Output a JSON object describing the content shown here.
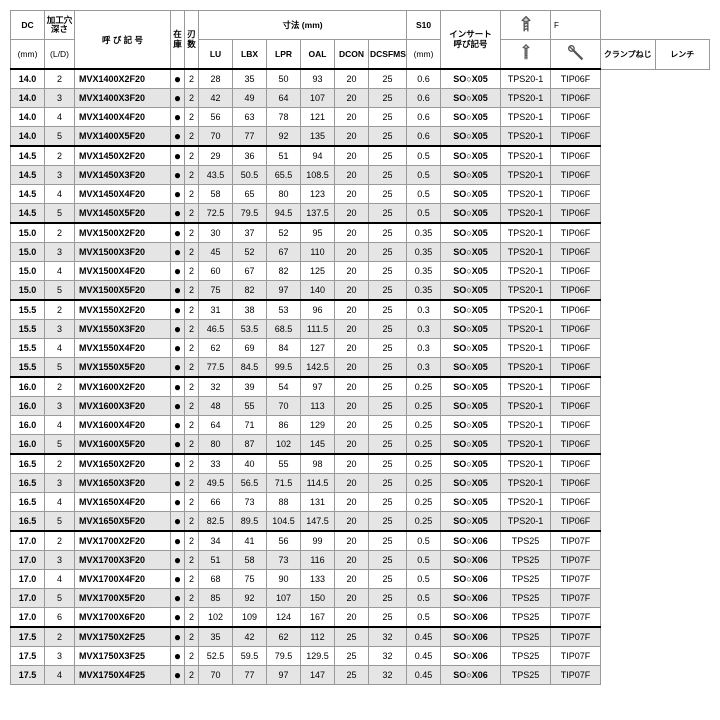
{
  "headers": {
    "dc": "DC",
    "dc_unit": "(mm)",
    "depth": "加工穴\n深さ",
    "depth_unit": "(L/D)",
    "designation": "呼  び  記  号",
    "stock": "在\n庫",
    "flutes": "刃\n数",
    "dimensions": "寸法 (mm)",
    "lu": "LU",
    "lbx": "LBX",
    "lpr": "LPR",
    "oal": "OAL",
    "dcon": "DCON",
    "dcsfms": "DCSFMS",
    "s10": "S10",
    "s10_unit": "(mm)",
    "insert": "インサート\n呼び記号",
    "f": "F",
    "clamp": "クランプねじ",
    "wrench": "レンチ"
  },
  "groups": [
    {
      "shade": false,
      "rows": [
        {
          "dc": "14.0",
          "ld": "2",
          "desig": "MVX1400X2F20",
          "stock": "●",
          "fl": "2",
          "lu": "28",
          "lbx": "35",
          "lpr": "50",
          "oal": "93",
          "dcon": "20",
          "dcsfms": "25",
          "s10": "0.6",
          "ins": "SO○X05",
          "clamp": "TPS20-1",
          "wrench": "TIP06F"
        },
        {
          "dc": "14.0",
          "ld": "3",
          "desig": "MVX1400X3F20",
          "stock": "●",
          "fl": "2",
          "lu": "42",
          "lbx": "49",
          "lpr": "64",
          "oal": "107",
          "dcon": "20",
          "dcsfms": "25",
          "s10": "0.6",
          "ins": "SO○X05",
          "clamp": "TPS20-1",
          "wrench": "TIP06F",
          "sh": true
        },
        {
          "dc": "14.0",
          "ld": "4",
          "desig": "MVX1400X4F20",
          "stock": "●",
          "fl": "2",
          "lu": "56",
          "lbx": "63",
          "lpr": "78",
          "oal": "121",
          "dcon": "20",
          "dcsfms": "25",
          "s10": "0.6",
          "ins": "SO○X05",
          "clamp": "TPS20-1",
          "wrench": "TIP06F"
        },
        {
          "dc": "14.0",
          "ld": "5",
          "desig": "MVX1400X5F20",
          "stock": "●",
          "fl": "2",
          "lu": "70",
          "lbx": "77",
          "lpr": "92",
          "oal": "135",
          "dcon": "20",
          "dcsfms": "25",
          "s10": "0.6",
          "ins": "SO○X05",
          "clamp": "TPS20-1",
          "wrench": "TIP06F",
          "sh": true
        }
      ]
    },
    {
      "rows": [
        {
          "dc": "14.5",
          "ld": "2",
          "desig": "MVX1450X2F20",
          "stock": "●",
          "fl": "2",
          "lu": "29",
          "lbx": "36",
          "lpr": "51",
          "oal": "94",
          "dcon": "20",
          "dcsfms": "25",
          "s10": "0.5",
          "ins": "SO○X05",
          "clamp": "TPS20-1",
          "wrench": "TIP06F"
        },
        {
          "dc": "14.5",
          "ld": "3",
          "desig": "MVX1450X3F20",
          "stock": "●",
          "fl": "2",
          "lu": "43.5",
          "lbx": "50.5",
          "lpr": "65.5",
          "oal": "108.5",
          "dcon": "20",
          "dcsfms": "25",
          "s10": "0.5",
          "ins": "SO○X05",
          "clamp": "TPS20-1",
          "wrench": "TIP06F",
          "sh": true
        },
        {
          "dc": "14.5",
          "ld": "4",
          "desig": "MVX1450X4F20",
          "stock": "●",
          "fl": "2",
          "lu": "58",
          "lbx": "65",
          "lpr": "80",
          "oal": "123",
          "dcon": "20",
          "dcsfms": "25",
          "s10": "0.5",
          "ins": "SO○X05",
          "clamp": "TPS20-1",
          "wrench": "TIP06F"
        },
        {
          "dc": "14.5",
          "ld": "5",
          "desig": "MVX1450X5F20",
          "stock": "●",
          "fl": "2",
          "lu": "72.5",
          "lbx": "79.5",
          "lpr": "94.5",
          "oal": "137.5",
          "dcon": "20",
          "dcsfms": "25",
          "s10": "0.5",
          "ins": "SO○X05",
          "clamp": "TPS20-1",
          "wrench": "TIP06F",
          "sh": true
        }
      ]
    },
    {
      "rows": [
        {
          "dc": "15.0",
          "ld": "2",
          "desig": "MVX1500X2F20",
          "stock": "●",
          "fl": "2",
          "lu": "30",
          "lbx": "37",
          "lpr": "52",
          "oal": "95",
          "dcon": "20",
          "dcsfms": "25",
          "s10": "0.35",
          "ins": "SO○X05",
          "clamp": "TPS20-1",
          "wrench": "TIP06F"
        },
        {
          "dc": "15.0",
          "ld": "3",
          "desig": "MVX1500X3F20",
          "stock": "●",
          "fl": "2",
          "lu": "45",
          "lbx": "52",
          "lpr": "67",
          "oal": "110",
          "dcon": "20",
          "dcsfms": "25",
          "s10": "0.35",
          "ins": "SO○X05",
          "clamp": "TPS20-1",
          "wrench": "TIP06F",
          "sh": true
        },
        {
          "dc": "15.0",
          "ld": "4",
          "desig": "MVX1500X4F20",
          "stock": "●",
          "fl": "2",
          "lu": "60",
          "lbx": "67",
          "lpr": "82",
          "oal": "125",
          "dcon": "20",
          "dcsfms": "25",
          "s10": "0.35",
          "ins": "SO○X05",
          "clamp": "TPS20-1",
          "wrench": "TIP06F"
        },
        {
          "dc": "15.0",
          "ld": "5",
          "desig": "MVX1500X5F20",
          "stock": "●",
          "fl": "2",
          "lu": "75",
          "lbx": "82",
          "lpr": "97",
          "oal": "140",
          "dcon": "20",
          "dcsfms": "25",
          "s10": "0.35",
          "ins": "SO○X05",
          "clamp": "TPS20-1",
          "wrench": "TIP06F",
          "sh": true
        }
      ]
    },
    {
      "rows": [
        {
          "dc": "15.5",
          "ld": "2",
          "desig": "MVX1550X2F20",
          "stock": "●",
          "fl": "2",
          "lu": "31",
          "lbx": "38",
          "lpr": "53",
          "oal": "96",
          "dcon": "20",
          "dcsfms": "25",
          "s10": "0.3",
          "ins": "SO○X05",
          "clamp": "TPS20-1",
          "wrench": "TIP06F"
        },
        {
          "dc": "15.5",
          "ld": "3",
          "desig": "MVX1550X3F20",
          "stock": "●",
          "fl": "2",
          "lu": "46.5",
          "lbx": "53.5",
          "lpr": "68.5",
          "oal": "111.5",
          "dcon": "20",
          "dcsfms": "25",
          "s10": "0.3",
          "ins": "SO○X05",
          "clamp": "TPS20-1",
          "wrench": "TIP06F",
          "sh": true
        },
        {
          "dc": "15.5",
          "ld": "4",
          "desig": "MVX1550X4F20",
          "stock": "●",
          "fl": "2",
          "lu": "62",
          "lbx": "69",
          "lpr": "84",
          "oal": "127",
          "dcon": "20",
          "dcsfms": "25",
          "s10": "0.3",
          "ins": "SO○X05",
          "clamp": "TPS20-1",
          "wrench": "TIP06F"
        },
        {
          "dc": "15.5",
          "ld": "5",
          "desig": "MVX1550X5F20",
          "stock": "●",
          "fl": "2",
          "lu": "77.5",
          "lbx": "84.5",
          "lpr": "99.5",
          "oal": "142.5",
          "dcon": "20",
          "dcsfms": "25",
          "s10": "0.3",
          "ins": "SO○X05",
          "clamp": "TPS20-1",
          "wrench": "TIP06F",
          "sh": true
        }
      ]
    },
    {
      "rows": [
        {
          "dc": "16.0",
          "ld": "2",
          "desig": "MVX1600X2F20",
          "stock": "●",
          "fl": "2",
          "lu": "32",
          "lbx": "39",
          "lpr": "54",
          "oal": "97",
          "dcon": "20",
          "dcsfms": "25",
          "s10": "0.25",
          "ins": "SO○X05",
          "clamp": "TPS20-1",
          "wrench": "TIP06F"
        },
        {
          "dc": "16.0",
          "ld": "3",
          "desig": "MVX1600X3F20",
          "stock": "●",
          "fl": "2",
          "lu": "48",
          "lbx": "55",
          "lpr": "70",
          "oal": "113",
          "dcon": "20",
          "dcsfms": "25",
          "s10": "0.25",
          "ins": "SO○X05",
          "clamp": "TPS20-1",
          "wrench": "TIP06F",
          "sh": true
        },
        {
          "dc": "16.0",
          "ld": "4",
          "desig": "MVX1600X4F20",
          "stock": "●",
          "fl": "2",
          "lu": "64",
          "lbx": "71",
          "lpr": "86",
          "oal": "129",
          "dcon": "20",
          "dcsfms": "25",
          "s10": "0.25",
          "ins": "SO○X05",
          "clamp": "TPS20-1",
          "wrench": "TIP06F"
        },
        {
          "dc": "16.0",
          "ld": "5",
          "desig": "MVX1600X5F20",
          "stock": "●",
          "fl": "2",
          "lu": "80",
          "lbx": "87",
          "lpr": "102",
          "oal": "145",
          "dcon": "20",
          "dcsfms": "25",
          "s10": "0.25",
          "ins": "SO○X05",
          "clamp": "TPS20-1",
          "wrench": "TIP06F",
          "sh": true
        }
      ]
    },
    {
      "rows": [
        {
          "dc": "16.5",
          "ld": "2",
          "desig": "MVX1650X2F20",
          "stock": "●",
          "fl": "2",
          "lu": "33",
          "lbx": "40",
          "lpr": "55",
          "oal": "98",
          "dcon": "20",
          "dcsfms": "25",
          "s10": "0.25",
          "ins": "SO○X05",
          "clamp": "TPS20-1",
          "wrench": "TIP06F"
        },
        {
          "dc": "16.5",
          "ld": "3",
          "desig": "MVX1650X3F20",
          "stock": "●",
          "fl": "2",
          "lu": "49.5",
          "lbx": "56.5",
          "lpr": "71.5",
          "oal": "114.5",
          "dcon": "20",
          "dcsfms": "25",
          "s10": "0.25",
          "ins": "SO○X05",
          "clamp": "TPS20-1",
          "wrench": "TIP06F",
          "sh": true
        },
        {
          "dc": "16.5",
          "ld": "4",
          "desig": "MVX1650X4F20",
          "stock": "●",
          "fl": "2",
          "lu": "66",
          "lbx": "73",
          "lpr": "88",
          "oal": "131",
          "dcon": "20",
          "dcsfms": "25",
          "s10": "0.25",
          "ins": "SO○X05",
          "clamp": "TPS20-1",
          "wrench": "TIP06F"
        },
        {
          "dc": "16.5",
          "ld": "5",
          "desig": "MVX1650X5F20",
          "stock": "●",
          "fl": "2",
          "lu": "82.5",
          "lbx": "89.5",
          "lpr": "104.5",
          "oal": "147.5",
          "dcon": "20",
          "dcsfms": "25",
          "s10": "0.25",
          "ins": "SO○X05",
          "clamp": "TPS20-1",
          "wrench": "TIP06F",
          "sh": true
        }
      ]
    },
    {
      "rows": [
        {
          "dc": "17.0",
          "ld": "2",
          "desig": "MVX1700X2F20",
          "stock": "●",
          "fl": "2",
          "lu": "34",
          "lbx": "41",
          "lpr": "56",
          "oal": "99",
          "dcon": "20",
          "dcsfms": "25",
          "s10": "0.5",
          "ins": "SO○X06",
          "clamp": "TPS25",
          "wrench": "TIP07F"
        },
        {
          "dc": "17.0",
          "ld": "3",
          "desig": "MVX1700X3F20",
          "stock": "●",
          "fl": "2",
          "lu": "51",
          "lbx": "58",
          "lpr": "73",
          "oal": "116",
          "dcon": "20",
          "dcsfms": "25",
          "s10": "0.5",
          "ins": "SO○X06",
          "clamp": "TPS25",
          "wrench": "TIP07F",
          "sh": true
        },
        {
          "dc": "17.0",
          "ld": "4",
          "desig": "MVX1700X4F20",
          "stock": "●",
          "fl": "2",
          "lu": "68",
          "lbx": "75",
          "lpr": "90",
          "oal": "133",
          "dcon": "20",
          "dcsfms": "25",
          "s10": "0.5",
          "ins": "SO○X06",
          "clamp": "TPS25",
          "wrench": "TIP07F"
        },
        {
          "dc": "17.0",
          "ld": "5",
          "desig": "MVX1700X5F20",
          "stock": "●",
          "fl": "2",
          "lu": "85",
          "lbx": "92",
          "lpr": "107",
          "oal": "150",
          "dcon": "20",
          "dcsfms": "25",
          "s10": "0.5",
          "ins": "SO○X06",
          "clamp": "TPS25",
          "wrench": "TIP07F",
          "sh": true
        },
        {
          "dc": "17.0",
          "ld": "6",
          "desig": "MVX1700X6F20",
          "stock": "●",
          "fl": "2",
          "lu": "102",
          "lbx": "109",
          "lpr": "124",
          "oal": "167",
          "dcon": "20",
          "dcsfms": "25",
          "s10": "0.5",
          "ins": "SO○X06",
          "clamp": "TPS25",
          "wrench": "TIP07F"
        }
      ]
    },
    {
      "rows": [
        {
          "dc": "17.5",
          "ld": "2",
          "desig": "MVX1750X2F25",
          "stock": "●",
          "fl": "2",
          "lu": "35",
          "lbx": "42",
          "lpr": "62",
          "oal": "112",
          "dcon": "25",
          "dcsfms": "32",
          "s10": "0.45",
          "ins": "SO○X06",
          "clamp": "TPS25",
          "wrench": "TIP07F",
          "sh": true
        },
        {
          "dc": "17.5",
          "ld": "3",
          "desig": "MVX1750X3F25",
          "stock": "●",
          "fl": "2",
          "lu": "52.5",
          "lbx": "59.5",
          "lpr": "79.5",
          "oal": "129.5",
          "dcon": "25",
          "dcsfms": "32",
          "s10": "0.45",
          "ins": "SO○X06",
          "clamp": "TPS25",
          "wrench": "TIP07F"
        },
        {
          "dc": "17.5",
          "ld": "4",
          "desig": "MVX1750X4F25",
          "stock": "●",
          "fl": "2",
          "lu": "70",
          "lbx": "77",
          "lpr": "97",
          "oal": "147",
          "dcon": "25",
          "dcsfms": "32",
          "s10": "0.45",
          "ins": "SO○X06",
          "clamp": "TPS25",
          "wrench": "TIP07F",
          "sh": true
        }
      ]
    }
  ],
  "col_widths": [
    "34",
    "30",
    "96",
    "14",
    "14",
    "34",
    "34",
    "34",
    "34",
    "34",
    "38",
    "34",
    "60",
    "50",
    "50"
  ]
}
